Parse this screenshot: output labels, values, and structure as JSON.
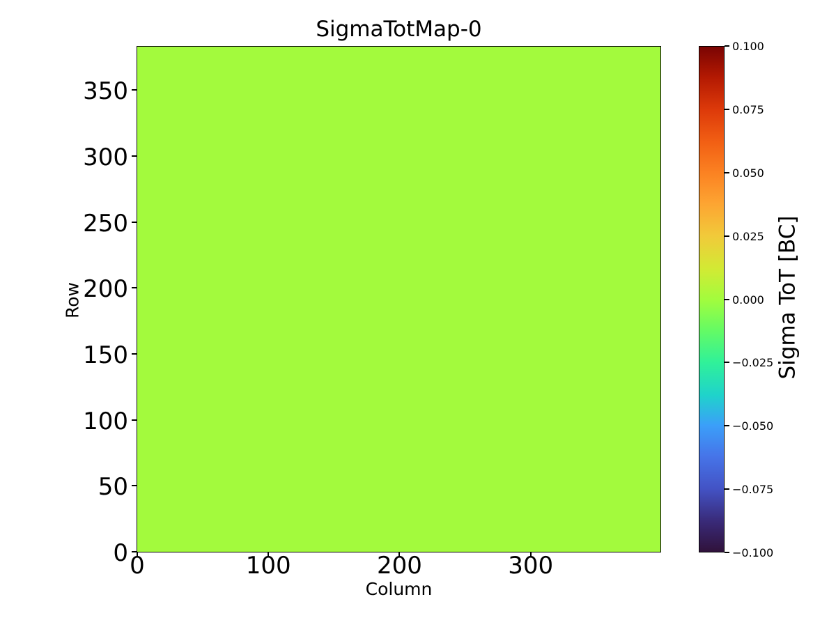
{
  "figure": {
    "background": "#ffffff"
  },
  "chart_data": {
    "type": "heatmap",
    "title": "SigmaTotMap-0",
    "xlabel": "Column",
    "ylabel": "Row",
    "xlim": [
      -0.5,
      399.5
    ],
    "ylim": [
      -0.5,
      383.5
    ],
    "n_columns": 400,
    "n_rows": 384,
    "x_ticks": [
      0,
      100,
      200,
      300
    ],
    "y_ticks": [
      0,
      50,
      100,
      150,
      200,
      250,
      300,
      350
    ],
    "grid": false,
    "data_uniform_value": 0.0,
    "uniform_fill_color": "#a3fa3d",
    "colorbar": {
      "label": "Sigma ToT [BC]",
      "min": -0.1,
      "max": 0.1,
      "colormap": "turbo",
      "tick_values": [
        0.1,
        0.075,
        0.05,
        0.025,
        0.0,
        -0.025,
        -0.05,
        -0.075,
        -0.1
      ],
      "tick_labels": [
        "0.100",
        "0.075",
        "0.050",
        "0.025",
        "0.000",
        "−0.025",
        "−0.050",
        "−0.075",
        "−0.100"
      ],
      "gradient_stops": [
        {
          "pos": 0,
          "color": "#7a0403"
        },
        {
          "pos": 6,
          "color": "#b31902"
        },
        {
          "pos": 12.5,
          "color": "#dd3a0a"
        },
        {
          "pos": 19,
          "color": "#f26014"
        },
        {
          "pos": 25,
          "color": "#fb8222"
        },
        {
          "pos": 31,
          "color": "#fda432"
        },
        {
          "pos": 37.5,
          "color": "#f1ca3a"
        },
        {
          "pos": 44,
          "color": "#d2ea34"
        },
        {
          "pos": 50,
          "color": "#a3fc3d"
        },
        {
          "pos": 56,
          "color": "#66fb63"
        },
        {
          "pos": 62.5,
          "color": "#30f199"
        },
        {
          "pos": 69,
          "color": "#1fd3cb"
        },
        {
          "pos": 75,
          "color": "#3b9ff9"
        },
        {
          "pos": 81,
          "color": "#4675e9"
        },
        {
          "pos": 87.5,
          "color": "#4353c5"
        },
        {
          "pos": 94,
          "color": "#392a78"
        },
        {
          "pos": 100,
          "color": "#30123b"
        }
      ]
    }
  }
}
